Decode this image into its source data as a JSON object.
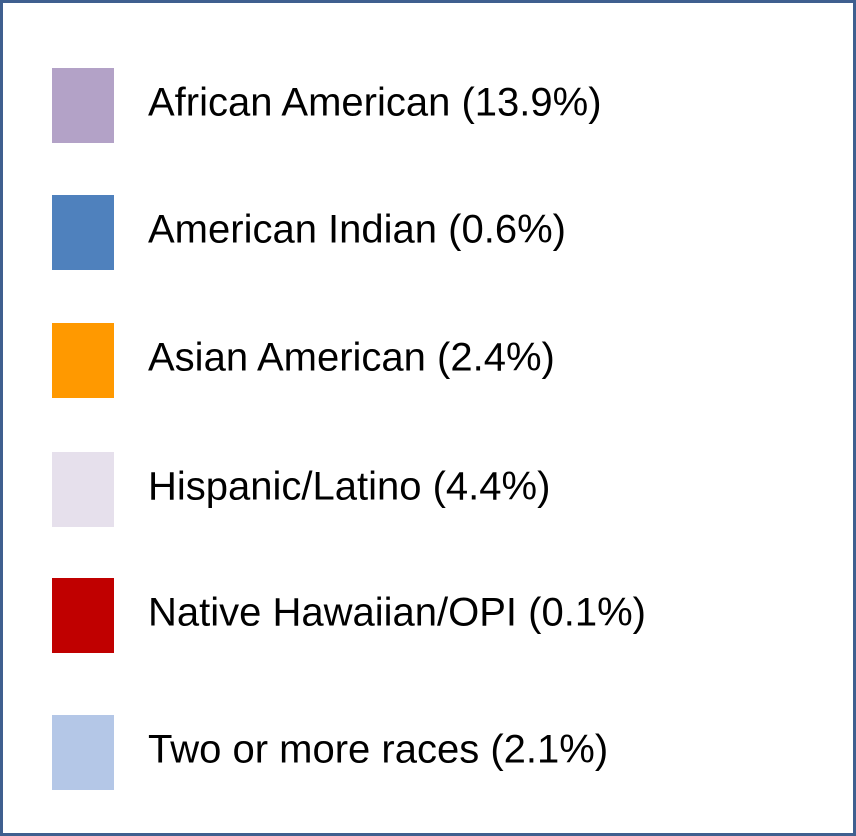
{
  "legend": {
    "items": [
      {
        "label": "African American (13.9%)",
        "color": "#b3a2c7"
      },
      {
        "label": "American Indian (0.6%)",
        "color": "#4f81bd"
      },
      {
        "label": "Asian American (2.4%)",
        "color": "#ff9900"
      },
      {
        "label": "Hispanic/Latino (4.4%)",
        "color": "#e6e0ec"
      },
      {
        "label": "Native Hawaiian/OPI (0.1%)",
        "color": "#c00000"
      },
      {
        "label": "Two or more races (2.1%)",
        "color": "#b4c7e7"
      }
    ]
  }
}
